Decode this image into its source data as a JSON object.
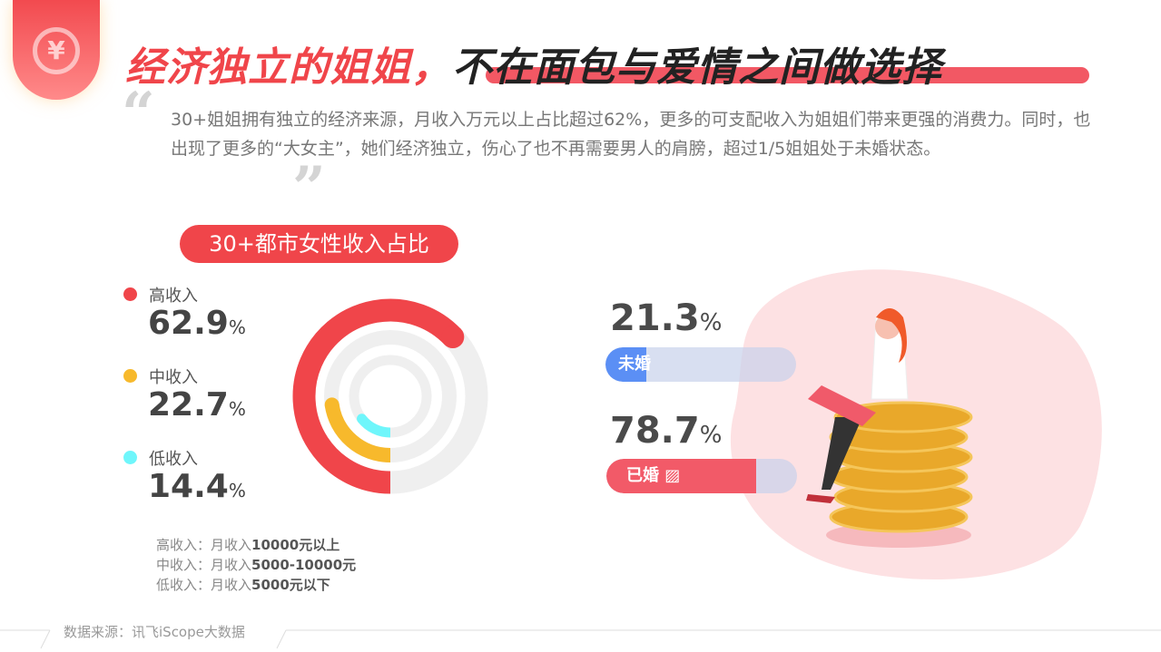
{
  "header": {
    "badge_icon": "yuan-icon",
    "badge_symbol": "¥",
    "title_red": "经济独立的姐姐，",
    "title_dark": "不在面包与爱情之间做选择"
  },
  "intro": {
    "text": "30+姐姐拥有独立的经济来源，月收入万元以上占比超过62%，更多的可支配收入为姐姐们带来更强的消费力。同时，也出现了更多的“大女主”，她们经济独立，伤心了也不再需要男人的肩膀，超过1/5姐姐处于未婚状态。",
    "open_quote": "“",
    "close_quote": "”"
  },
  "chart_data": [
    {
      "type": "radial-bar",
      "title": "30+都市女性收入占比",
      "categories": [
        "高收入",
        "中收入",
        "低收入"
      ],
      "values": [
        62.9,
        22.7,
        14.4
      ],
      "unit": "%",
      "colors": [
        "#f0454a",
        "#f7b92c",
        "#6ff6fb"
      ],
      "track_color": "#efefef",
      "legend_placement": "left",
      "value_labels": [
        "62.9",
        "22.7",
        "14.4"
      ],
      "notes": [
        {
          "label": "高收入：月收入",
          "value": "10000元以上"
        },
        {
          "label": "中收入：月收入",
          "value": "5000-10000元"
        },
        {
          "label": "低收入：月收入",
          "value": "5000元以下"
        }
      ]
    },
    {
      "type": "bar",
      "categories": [
        "未婚",
        "已婚"
      ],
      "values": [
        21.3,
        78.7
      ],
      "unit": "%",
      "colors": [
        "#5b8ff5",
        "#f25a68"
      ],
      "value_labels": [
        "21.3",
        "78.7"
      ]
    }
  ],
  "footer": {
    "source": "数据来源：讯飞iScope大数据"
  }
}
